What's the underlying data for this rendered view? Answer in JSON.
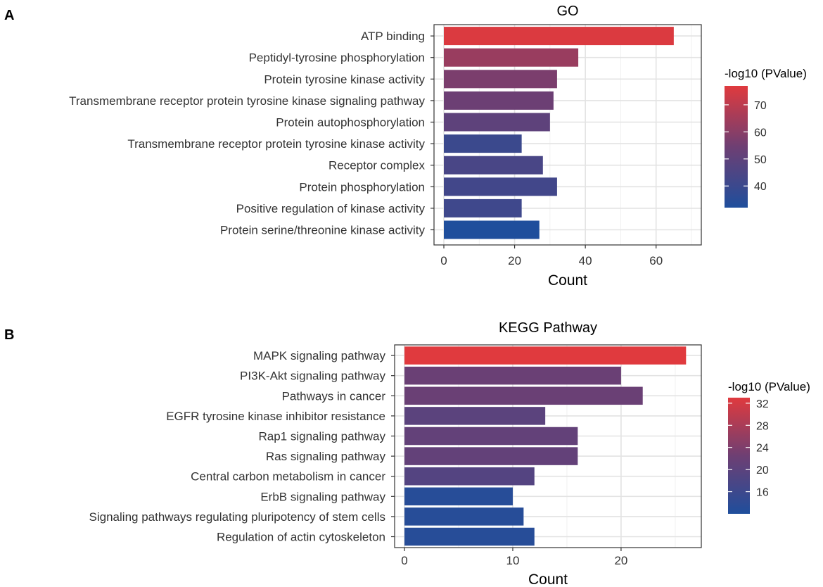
{
  "chart_data": [
    {
      "panel": "A",
      "type": "bar",
      "orientation": "horizontal",
      "title": "GO",
      "xlabel": "Count",
      "ylabel": "",
      "xlim": [
        0,
        70
      ],
      "xticks": [
        0,
        20,
        40,
        60
      ],
      "categories": [
        "ATP binding",
        "Peptidyl-tyrosine phosphorylation",
        "Protein tyrosine kinase activity",
        "Transmembrane receptor protein tyrosine kinase signaling pathway",
        "Protein autophosphorylation",
        "Transmembrane receptor protein tyrosine kinase activity",
        "Receptor complex",
        "Protein phosphorylation",
        "Positive regulation of kinase activity",
        "Protein serine/threonine kinase activity"
      ],
      "values": [
        65,
        38,
        32,
        31,
        30,
        22,
        28,
        32,
        22,
        27
      ],
      "color_values": [
        76,
        63,
        57,
        54,
        50,
        40,
        44,
        42,
        41,
        32
      ],
      "color_scale": {
        "title": "-log10 (PValue)",
        "range": [
          32,
          77
        ],
        "ticks": [
          40,
          50,
          60,
          70
        ],
        "low_color": "#1f4e9c",
        "mid_color": "#6e3f73",
        "high_color": "#e03a3e"
      },
      "grid": true
    },
    {
      "panel": "B",
      "type": "bar",
      "orientation": "horizontal",
      "title": "KEGG Pathway",
      "xlabel": "Count",
      "ylabel": "",
      "xlim": [
        0,
        26.5
      ],
      "xticks": [
        0,
        10,
        20
      ],
      "categories": [
        "MAPK signaling pathway",
        "PI3K-Akt signaling pathway",
        "Pathways in cancer",
        "EGFR tyrosine kinase inhibitor resistance",
        "Rap1 signaling pathway",
        "Ras signaling pathway",
        "Central carbon metabolism in cancer",
        "ErbB signaling pathway",
        "Signaling pathways regulating pluripotency of stem cells",
        "Regulation of actin cytoskeleton"
      ],
      "values": [
        26,
        20,
        22,
        13,
        16,
        16,
        12,
        10,
        11,
        12
      ],
      "color_values": [
        33,
        22,
        22,
        20,
        21,
        21,
        19,
        13,
        13,
        13
      ],
      "color_scale": {
        "title": "-log10 (PValue)",
        "range": [
          12,
          33
        ],
        "ticks": [
          16,
          20,
          24,
          28,
          32
        ],
        "low_color": "#1f4e9c",
        "mid_color": "#6e3f73",
        "high_color": "#e03a3e"
      },
      "grid": true
    }
  ]
}
